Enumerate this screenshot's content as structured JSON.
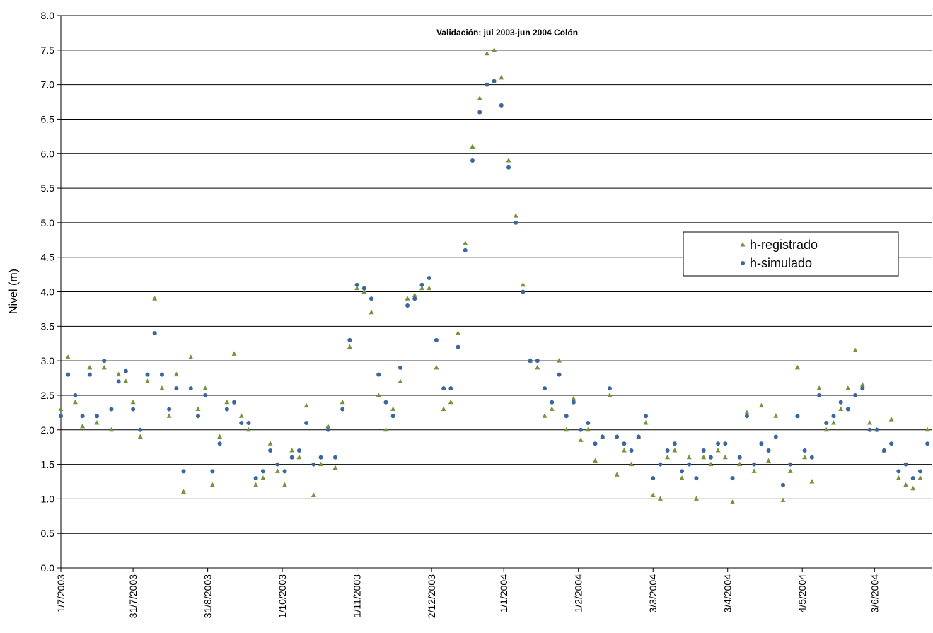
{
  "chart_data": {
    "type": "scatter",
    "title": "Validación: jul 2003-jun 2004 Colón",
    "y_label": "Nivel (m)",
    "x": [
      "2003-07-01",
      "2003-07-04",
      "2003-07-07",
      "2003-07-10",
      "2003-07-13",
      "2003-07-16",
      "2003-07-19",
      "2003-07-22",
      "2003-07-25",
      "2003-07-28",
      "2003-07-31",
      "2003-08-03",
      "2003-08-06",
      "2003-08-09",
      "2003-08-12",
      "2003-08-15",
      "2003-08-18",
      "2003-08-21",
      "2003-08-24",
      "2003-08-27",
      "2003-08-30",
      "2003-09-02",
      "2003-09-05",
      "2003-09-08",
      "2003-09-11",
      "2003-09-14",
      "2003-09-17",
      "2003-09-20",
      "2003-09-23",
      "2003-09-26",
      "2003-09-29",
      "2003-10-02",
      "2003-10-05",
      "2003-10-08",
      "2003-10-11",
      "2003-10-14",
      "2003-10-17",
      "2003-10-20",
      "2003-10-23",
      "2003-10-26",
      "2003-10-29",
      "2003-11-01",
      "2003-11-04",
      "2003-11-07",
      "2003-11-10",
      "2003-11-13",
      "2003-11-16",
      "2003-11-19",
      "2003-11-22",
      "2003-11-25",
      "2003-11-28",
      "2003-12-01",
      "2003-12-04",
      "2003-12-07",
      "2003-12-10",
      "2003-12-13",
      "2003-12-16",
      "2003-12-19",
      "2003-12-22",
      "2003-12-25",
      "2003-12-28",
      "2003-12-31",
      "2004-01-03",
      "2004-01-06",
      "2004-01-09",
      "2004-01-12",
      "2004-01-15",
      "2004-01-18",
      "2004-01-21",
      "2004-01-24",
      "2004-01-27",
      "2004-01-30",
      "2004-02-02",
      "2004-02-05",
      "2004-02-08",
      "2004-02-11",
      "2004-02-14",
      "2004-02-17",
      "2004-02-20",
      "2004-02-23",
      "2004-02-26",
      "2004-02-29",
      "2004-03-03",
      "2004-03-06",
      "2004-03-09",
      "2004-03-12",
      "2004-03-15",
      "2004-03-18",
      "2004-03-21",
      "2004-03-24",
      "2004-03-27",
      "2004-03-30",
      "2004-04-02",
      "2004-04-05",
      "2004-04-08",
      "2004-04-11",
      "2004-04-14",
      "2004-04-17",
      "2004-04-20",
      "2004-04-23",
      "2004-04-26",
      "2004-04-29",
      "2004-05-02",
      "2004-05-05",
      "2004-05-08",
      "2004-05-11",
      "2004-05-14",
      "2004-05-17",
      "2004-05-20",
      "2004-05-23",
      "2004-05-26",
      "2004-05-29",
      "2004-06-01",
      "2004-06-04",
      "2004-06-07",
      "2004-06-10",
      "2004-06-13",
      "2004-06-16",
      "2004-06-19",
      "2004-06-22",
      "2004-06-25"
    ],
    "series": [
      {
        "name": "h-registrado",
        "color": "#77933c",
        "marker": "triangle",
        "values": [
          2.3,
          3.05,
          2.4,
          2.05,
          2.9,
          2.1,
          2.9,
          2.0,
          2.8,
          2.7,
          2.4,
          1.9,
          2.7,
          3.9,
          2.6,
          2.2,
          2.8,
          1.1,
          3.05,
          2.3,
          2.6,
          1.2,
          1.9,
          2.4,
          3.1,
          2.2,
          2.0,
          1.2,
          1.3,
          1.8,
          1.4,
          1.2,
          1.7,
          1.6,
          2.35,
          1.05,
          1.5,
          2.05,
          1.45,
          2.4,
          3.2,
          4.05,
          4.0,
          3.7,
          2.5,
          2.0,
          2.3,
          2.7,
          3.9,
          3.95,
          4.05,
          4.05,
          2.9,
          2.3,
          2.4,
          3.4,
          4.7,
          6.1,
          6.8,
          7.45,
          7.5,
          7.1,
          5.9,
          5.1,
          4.1,
          3.0,
          2.9,
          2.2,
          2.3,
          3.0,
          2.0,
          2.45,
          1.85,
          2.0,
          1.55,
          1.9,
          2.5,
          1.35,
          1.7,
          1.5,
          1.9,
          2.1,
          1.05,
          1.0,
          1.6,
          1.7,
          1.3,
          1.6,
          1.0,
          1.6,
          1.5,
          1.7,
          1.6,
          0.95,
          1.5,
          2.25,
          1.4,
          2.35,
          1.55,
          2.2,
          0.98,
          1.4,
          2.9,
          1.6,
          1.25,
          2.6,
          2.0,
          2.1,
          2.3,
          2.6,
          3.15,
          2.65,
          2.1,
          2.0,
          1.7,
          2.15,
          1.3,
          1.2,
          1.15,
          1.3,
          2.0
        ]
      },
      {
        "name": "h-simulado",
        "color": "#3a67a0",
        "marker": "circle",
        "values": [
          2.2,
          2.8,
          2.5,
          2.2,
          2.8,
          2.2,
          3.0,
          2.3,
          2.7,
          2.85,
          2.3,
          2.0,
          2.8,
          3.4,
          2.8,
          2.3,
          2.6,
          1.4,
          2.6,
          2.2,
          2.5,
          1.4,
          1.8,
          2.3,
          2.4,
          2.1,
          2.1,
          1.3,
          1.4,
          1.7,
          1.5,
          1.4,
          1.6,
          1.7,
          2.1,
          1.5,
          1.6,
          2.0,
          1.6,
          2.3,
          3.3,
          4.1,
          4.05,
          3.9,
          2.8,
          2.4,
          2.2,
          2.9,
          3.8,
          3.9,
          4.1,
          4.2,
          3.3,
          2.6,
          2.6,
          3.2,
          4.6,
          5.9,
          6.6,
          7.0,
          7.05,
          6.7,
          5.8,
          5.0,
          4.0,
          3.0,
          3.0,
          2.6,
          2.4,
          2.8,
          2.2,
          2.4,
          2.0,
          2.1,
          1.8,
          1.9,
          2.6,
          1.9,
          1.8,
          1.7,
          1.9,
          2.2,
          1.3,
          1.5,
          1.7,
          1.8,
          1.4,
          1.5,
          1.3,
          1.7,
          1.6,
          1.8,
          1.8,
          1.3,
          1.6,
          2.2,
          1.5,
          1.8,
          1.7,
          1.9,
          1.2,
          1.5,
          2.2,
          1.7,
          1.6,
          2.5,
          2.1,
          2.2,
          2.4,
          2.3,
          2.5,
          2.6,
          2.0,
          2.0,
          1.7,
          1.8,
          1.4,
          1.5,
          1.3,
          1.4,
          1.8
        ]
      }
    ],
    "xlim": [
      "2003-07-01",
      "2004-06-27"
    ],
    "xticks": [
      {
        "value": "2003-07-01",
        "label": "1/7/2003"
      },
      {
        "value": "2003-07-31",
        "label": "31/7/2003"
      },
      {
        "value": "2003-08-31",
        "label": "31/8/2003"
      },
      {
        "value": "2003-10-01",
        "label": "1/10/2003"
      },
      {
        "value": "2003-11-01",
        "label": "1/11/2003"
      },
      {
        "value": "2003-12-02",
        "label": "2/12/2003"
      },
      {
        "value": "2004-01-01",
        "label": "1/1/2004"
      },
      {
        "value": "2004-02-01",
        "label": "1/2/2004"
      },
      {
        "value": "2004-03-03",
        "label": "3/3/2004"
      },
      {
        "value": "2004-04-03",
        "label": "3/4/2004"
      },
      {
        "value": "2004-05-04",
        "label": "4/5/2004"
      },
      {
        "value": "2004-06-03",
        "label": "3/6/2004"
      }
    ],
    "ylim": [
      0,
      8
    ],
    "yticks": [
      {
        "value": 0,
        "label": "0.0"
      },
      {
        "value": 0.5,
        "label": "0.5"
      },
      {
        "value": 1,
        "label": "1.0"
      },
      {
        "value": 1.5,
        "label": "1.5"
      },
      {
        "value": 2,
        "label": "2.0"
      },
      {
        "value": 2.5,
        "label": "2.5"
      },
      {
        "value": 3,
        "label": "3.0"
      },
      {
        "value": 3.5,
        "label": "3.5"
      },
      {
        "value": 4,
        "label": "4.0"
      },
      {
        "value": 4.5,
        "label": "4.5"
      },
      {
        "value": 5,
        "label": "5.0"
      },
      {
        "value": 5.5,
        "label": "5.5"
      },
      {
        "value": 6,
        "label": "6.0"
      },
      {
        "value": 6.5,
        "label": "6.5"
      },
      {
        "value": 7,
        "label": "7.0"
      },
      {
        "value": 7.5,
        "label": "7.5"
      },
      {
        "value": 8,
        "label": "8.0"
      }
    ],
    "grid": true,
    "legend": "right"
  }
}
